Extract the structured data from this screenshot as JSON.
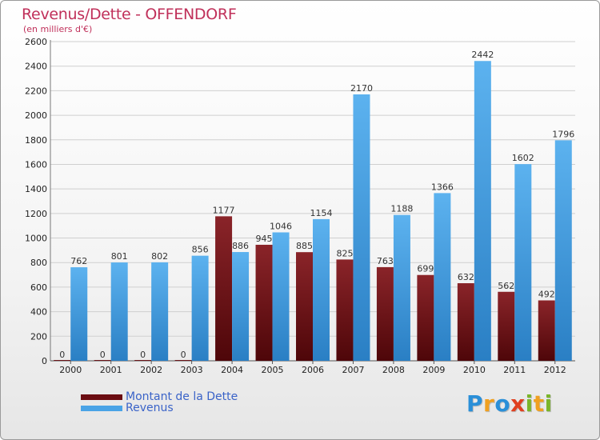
{
  "title": "Revenus/Dette - OFFENDORF",
  "subtitle": "(en milliers d'€)",
  "colors": {
    "title": "#c0305a",
    "dette": "#7a1a1e",
    "revenus": "#4aa3e6",
    "legend_text": "#3a63c8"
  },
  "chart_data": {
    "type": "bar",
    "categories": [
      "2000",
      "2001",
      "2002",
      "2003",
      "2004",
      "2005",
      "2006",
      "2007",
      "2008",
      "2009",
      "2010",
      "2011",
      "2012"
    ],
    "series": [
      {
        "name": "Montant de la Dette",
        "values": [
          0,
          0,
          0,
          0,
          1177,
          945,
          885,
          825,
          763,
          699,
          632,
          562,
          492
        ]
      },
      {
        "name": "Revenus",
        "values": [
          762,
          801,
          802,
          856,
          886,
          1046,
          1154,
          2170,
          1188,
          1366,
          2442,
          1602,
          1796
        ]
      }
    ],
    "ylim": [
      0,
      2600
    ],
    "yticks": [
      0,
      200,
      400,
      600,
      800,
      1000,
      1200,
      1400,
      1600,
      1800,
      2000,
      2200,
      2400,
      2600
    ],
    "grid": true,
    "legend_position": "bottom-left"
  },
  "legend": [
    {
      "label": "Montant de la Dette",
      "color": "#6b0d12"
    },
    {
      "label": "Revenus",
      "color": "#4aa3e6"
    }
  ],
  "logo": {
    "letters": [
      {
        "ch": "P",
        "color": "#2a8fd8"
      },
      {
        "ch": "r",
        "color": "#f0a020"
      },
      {
        "ch": "o",
        "color": "#2a8fd8"
      },
      {
        "ch": "x",
        "color": "#e04020"
      },
      {
        "ch": "i",
        "color": "#7ab52a"
      },
      {
        "ch": "t",
        "color": "#f0a020"
      },
      {
        "ch": "i",
        "color": "#7ab52a"
      }
    ]
  }
}
